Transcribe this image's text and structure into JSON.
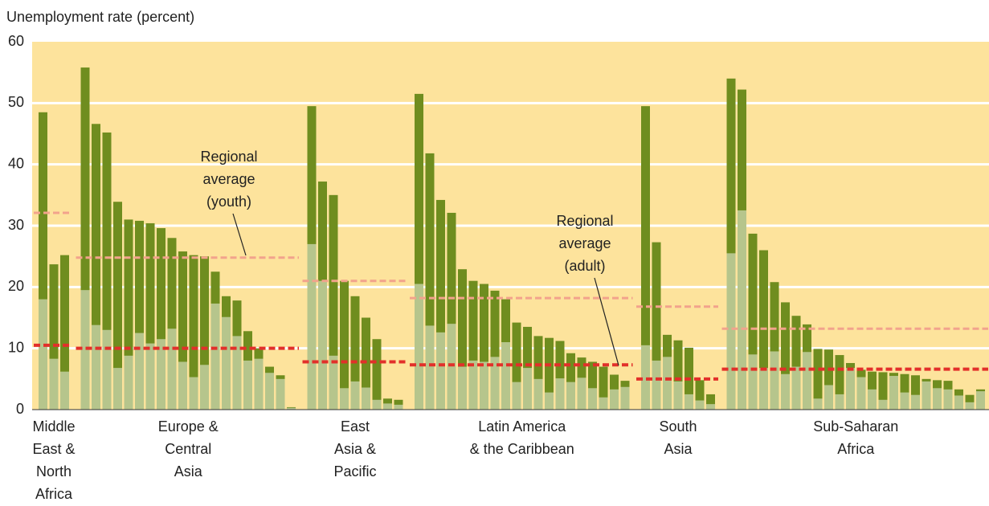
{
  "chart_data": {
    "type": "bar",
    "y_label": "Unemployment rate (percent)",
    "ylim": [
      0,
      60
    ],
    "yticks": [
      0,
      10,
      20,
      30,
      40,
      50,
      60
    ],
    "grid": true,
    "youth_color": "#6f8d1f",
    "adult_color": "#b6c58c",
    "youth_avg_color": "#f2a38c",
    "adult_avg_color": "#e2302a",
    "background_color": "#fde39c",
    "annotations": [
      {
        "lines": [
          "Regional",
          "average",
          "(youth)"
        ]
      },
      {
        "lines": [
          "Regional",
          "average",
          "(adult)"
        ]
      }
    ],
    "groups": [
      {
        "label": [
          "Middle",
          "East &",
          "North",
          "Africa"
        ],
        "youth_values": [
          48.5,
          23.7,
          25.2
        ],
        "adult_values": [
          18.0,
          8.3,
          6.2
        ],
        "youth_avg": 32.1,
        "adult_avg": 10.5
      },
      {
        "label": [
          "Europe &",
          "Central",
          "Asia"
        ],
        "youth_values": [
          55.8,
          46.6,
          45.2,
          33.9,
          31.0,
          30.8,
          30.4,
          29.6,
          28.0,
          25.8,
          25.2,
          25.0,
          22.5,
          18.5,
          17.8,
          12.8,
          10.0,
          7.0,
          5.6,
          0.4
        ],
        "adult_values": [
          19.5,
          13.8,
          13.0,
          6.8,
          8.8,
          12.5,
          10.8,
          11.5,
          13.2,
          7.8,
          5.3,
          7.3,
          17.3,
          15.1,
          12.0,
          8.0,
          8.3,
          6.0,
          5.0,
          0.3
        ],
        "youth_avg": 24.8,
        "adult_avg": 10.0
      },
      {
        "label": [
          "East",
          "Asia &",
          "Pacific"
        ],
        "youth_values": [
          49.5,
          37.2,
          35.0,
          21.0,
          18.5,
          15.0,
          11.5,
          1.8,
          1.6
        ],
        "adult_values": [
          27.0,
          21.0,
          8.8,
          3.5,
          4.6,
          3.6,
          1.6,
          1.0,
          0.8
        ],
        "youth_avg": 21.0,
        "adult_avg": 7.8
      },
      {
        "label": [
          "Latin America",
          "& the Caribbean"
        ],
        "youth_values": [
          51.5,
          41.8,
          34.2,
          32.1,
          22.9,
          21.0,
          20.5,
          19.4,
          18.0,
          14.2,
          13.5,
          12.0,
          11.7,
          11.2,
          9.2,
          8.5,
          7.8,
          7.0,
          5.7,
          4.7
        ],
        "adult_values": [
          20.5,
          13.7,
          12.6,
          14.0,
          7.0,
          8.0,
          7.8,
          8.6,
          11.0,
          4.5,
          6.8,
          5.0,
          2.8,
          5.1,
          4.5,
          5.2,
          3.5,
          2.0,
          3.3,
          3.7
        ],
        "youth_avg": 18.2,
        "adult_avg": 7.3
      },
      {
        "label": [
          "South",
          "Asia"
        ],
        "youth_values": [
          49.5,
          27.3,
          12.2,
          11.3,
          10.1,
          4.8,
          2.5
        ],
        "adult_values": [
          10.5,
          8.0,
          8.6,
          4.6,
          2.5,
          1.5,
          0.9
        ],
        "youth_avg": 16.8,
        "adult_avg": 5.0
      },
      {
        "label": [
          "Sub-Saharan",
          "Africa"
        ],
        "youth_values": [
          54.0,
          52.2,
          28.7,
          26.0,
          20.8,
          17.5,
          15.3,
          13.9,
          9.9,
          9.8,
          8.9,
          7.6,
          6.5,
          6.2,
          6.1,
          6.0,
          5.8,
          5.6,
          5.0,
          4.8,
          4.7,
          3.3,
          2.4,
          3.3
        ],
        "adult_values": [
          25.5,
          32.5,
          9.0,
          6.8,
          9.5,
          5.8,
          7.0,
          9.4,
          1.8,
          4.0,
          2.5,
          6.8,
          5.3,
          3.3,
          1.6,
          5.5,
          2.8,
          2.4,
          4.6,
          3.5,
          3.3,
          2.3,
          1.2,
          3.0
        ],
        "youth_avg": 13.2,
        "adult_avg": 6.6
      }
    ]
  }
}
